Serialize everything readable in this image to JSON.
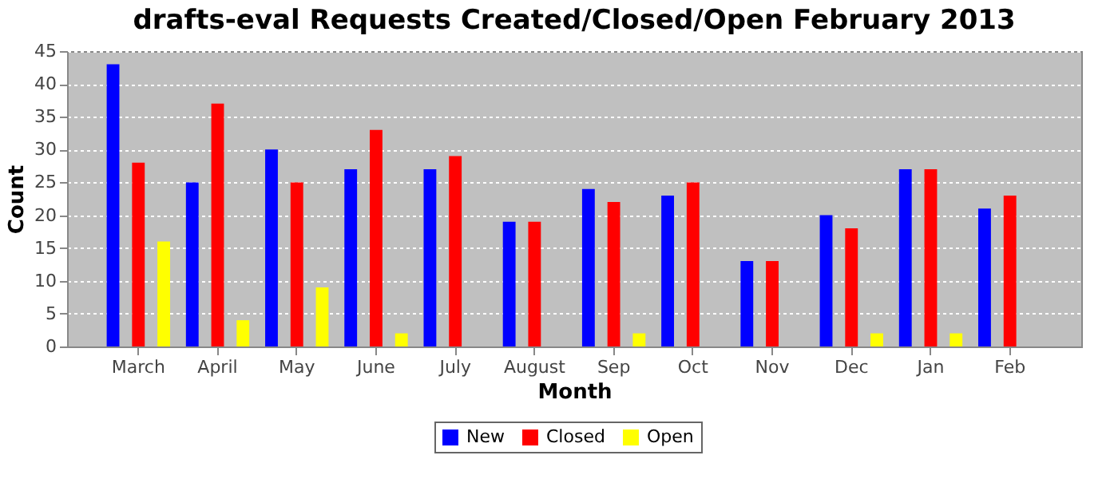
{
  "chart_data": {
    "type": "bar",
    "title": "drafts-eval Requests Created/Closed/Open February 2013",
    "xlabel": "Month",
    "ylabel": "Count",
    "categories": [
      "March",
      "April",
      "May",
      "June",
      "July",
      "August",
      "Sep",
      "Oct",
      "Nov",
      "Dec",
      "Jan",
      "Feb"
    ],
    "series": [
      {
        "name": "New",
        "color": "#0000ff",
        "values": [
          43,
          25,
          30,
          27,
          27,
          19,
          24,
          23,
          13,
          20,
          27,
          21
        ]
      },
      {
        "name": "Closed",
        "color": "#ff0000",
        "values": [
          28,
          37,
          25,
          33,
          29,
          19,
          22,
          25,
          13,
          18,
          27,
          23
        ]
      },
      {
        "name": "Open",
        "color": "#ffff00",
        "values": [
          16,
          4,
          9,
          2,
          0,
          0,
          2,
          0,
          0,
          2,
          2,
          0
        ]
      }
    ],
    "ylim": [
      0,
      45
    ],
    "yticks": [
      0,
      5,
      10,
      15,
      20,
      25,
      30,
      35,
      40,
      45
    ],
    "grid": "y",
    "legend": "bottom"
  }
}
